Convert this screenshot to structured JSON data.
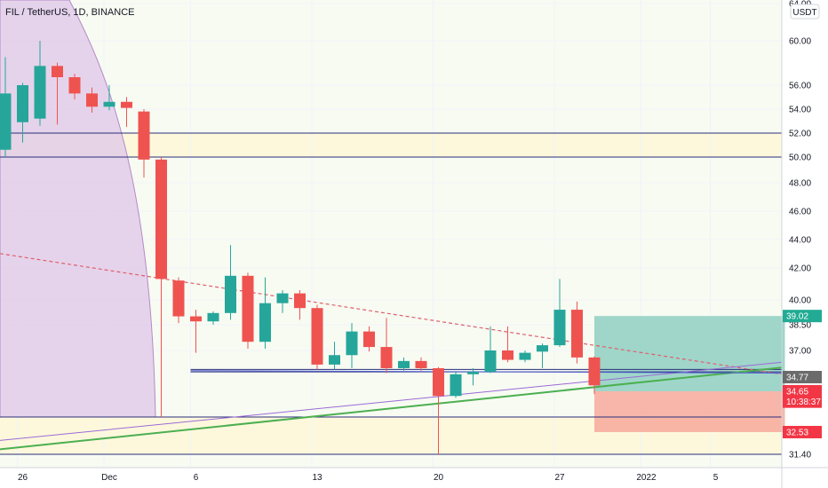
{
  "chart_data": {
    "type": "candlestick",
    "title": "FIL / TetherUS, 1D, BINANCE",
    "currency_button": "USDT",
    "y_scale": "log",
    "ylim": [
      30.6,
      64.5
    ],
    "y_ticks": [
      {
        "label": "64.00",
        "value": 64.0
      },
      {
        "label": "60.00",
        "value": 60.0
      },
      {
        "label": "56.00",
        "value": 56.0
      },
      {
        "label": "54.00",
        "value": 54.0
      },
      {
        "label": "52.00",
        "value": 52.0
      },
      {
        "label": "50.00",
        "value": 50.0
      },
      {
        "label": "48.00",
        "value": 48.0
      },
      {
        "label": "46.00",
        "value": 46.0
      },
      {
        "label": "44.00",
        "value": 44.0
      },
      {
        "label": "42.00",
        "value": 42.0
      },
      {
        "label": "40.00",
        "value": 40.0
      },
      {
        "label": "38.50",
        "value": 38.5
      },
      {
        "label": "37.00",
        "value": 37.0
      },
      {
        "label": "31.40",
        "value": 31.4
      }
    ],
    "x_ticks": [
      {
        "label": "26",
        "date": "2021-11-26"
      },
      {
        "label": "Dec",
        "date": "2021-12-01"
      },
      {
        "label": "6",
        "date": "2021-12-06"
      },
      {
        "label": "13",
        "date": "2021-12-13"
      },
      {
        "label": "20",
        "date": "2021-12-20"
      },
      {
        "label": "27",
        "date": "2021-12-27"
      },
      {
        "label": "2022",
        "date": "2022-01-01"
      },
      {
        "label": "5",
        "date": "2022-01-05"
      }
    ],
    "candles": [
      {
        "date": "2021-11-25",
        "open": 50.6,
        "high": 58.5,
        "low": 50.0,
        "close": 55.3
      },
      {
        "date": "2021-11-26",
        "open": 52.9,
        "high": 56.2,
        "low": 51.2,
        "close": 56.0
      },
      {
        "date": "2021-11-27",
        "open": 53.2,
        "high": 60.0,
        "low": 52.6,
        "close": 57.7
      },
      {
        "date": "2021-11-28",
        "open": 57.7,
        "high": 58.0,
        "low": 52.7,
        "close": 56.7
      },
      {
        "date": "2021-11-29",
        "open": 56.7,
        "high": 57.0,
        "low": 54.8,
        "close": 55.3
      },
      {
        "date": "2021-11-30",
        "open": 55.3,
        "high": 55.8,
        "low": 53.7,
        "close": 54.2
      },
      {
        "date": "2021-12-01",
        "open": 54.2,
        "high": 56.0,
        "low": 53.9,
        "close": 54.6
      },
      {
        "date": "2021-12-02",
        "open": 54.6,
        "high": 55.0,
        "low": 52.5,
        "close": 54.1
      },
      {
        "date": "2021-12-03",
        "open": 53.8,
        "high": 54.0,
        "low": 48.4,
        "close": 49.8
      },
      {
        "date": "2021-12-04",
        "open": 49.8,
        "high": 50.0,
        "low": 33.3,
        "close": 41.3
      },
      {
        "date": "2021-12-05",
        "open": 41.2,
        "high": 41.4,
        "low": 38.6,
        "close": 39.0
      },
      {
        "date": "2021-12-06",
        "open": 39.0,
        "high": 39.4,
        "low": 36.8,
        "close": 38.7
      },
      {
        "date": "2021-12-07",
        "open": 38.7,
        "high": 39.3,
        "low": 38.5,
        "close": 39.2
      },
      {
        "date": "2021-12-08",
        "open": 39.2,
        "high": 43.6,
        "low": 38.8,
        "close": 41.5
      },
      {
        "date": "2021-12-09",
        "open": 41.5,
        "high": 41.7,
        "low": 37.1,
        "close": 37.5
      },
      {
        "date": "2021-12-10",
        "open": 37.5,
        "high": 41.4,
        "low": 37.1,
        "close": 39.8
      },
      {
        "date": "2021-12-11",
        "open": 39.8,
        "high": 40.6,
        "low": 39.2,
        "close": 40.4
      },
      {
        "date": "2021-12-12",
        "open": 40.4,
        "high": 40.6,
        "low": 38.8,
        "close": 39.5
      },
      {
        "date": "2021-12-13",
        "open": 39.5,
        "high": 39.7,
        "low": 35.4,
        "close": 35.8
      },
      {
        "date": "2021-12-14",
        "open": 35.8,
        "high": 37.5,
        "low": 35.4,
        "close": 36.6
      },
      {
        "date": "2021-12-15",
        "open": 36.6,
        "high": 38.6,
        "low": 35.5,
        "close": 38.1
      },
      {
        "date": "2021-12-16",
        "open": 38.1,
        "high": 38.4,
        "low": 36.9,
        "close": 37.2
      },
      {
        "date": "2021-12-17",
        "open": 37.2,
        "high": 38.9,
        "low": 35.1,
        "close": 35.5
      },
      {
        "date": "2021-12-18",
        "open": 35.5,
        "high": 36.4,
        "low": 35.3,
        "close": 36.1
      },
      {
        "date": "2021-12-19",
        "open": 36.1,
        "high": 36.4,
        "low": 35.3,
        "close": 35.5
      },
      {
        "date": "2021-12-20",
        "open": 35.5,
        "high": 35.6,
        "low": 31.3,
        "close": 34.4
      },
      {
        "date": "2021-12-21",
        "open": 34.4,
        "high": 35.2,
        "low": 34.3,
        "close": 35.0
      },
      {
        "date": "2021-12-22",
        "open": 35.0,
        "high": 35.5,
        "low": 34.7,
        "close": 35.2
      },
      {
        "date": "2021-12-23",
        "open": 35.2,
        "high": 38.4,
        "low": 35.1,
        "close": 37.0
      },
      {
        "date": "2021-12-24",
        "open": 37.0,
        "high": 38.4,
        "low": 36.0,
        "close": 36.2
      },
      {
        "date": "2021-12-25",
        "open": 36.2,
        "high": 37.0,
        "low": 36.0,
        "close": 36.8
      },
      {
        "date": "2021-12-26",
        "open": 36.9,
        "high": 37.4,
        "low": 35.5,
        "close": 37.3
      },
      {
        "date": "2021-12-27",
        "open": 37.3,
        "high": 41.3,
        "low": 37.2,
        "close": 39.4
      },
      {
        "date": "2021-12-28",
        "open": 39.4,
        "high": 39.9,
        "low": 35.9,
        "close": 36.4
      },
      {
        "date": "2021-12-29",
        "open": 36.4,
        "high": 36.5,
        "low": 34.5,
        "close": 34.7
      }
    ],
    "horizontal_lines": [
      52.0,
      50.0,
      35.4,
      35.2,
      33.3,
      31.4
    ],
    "yellow_zones": [
      {
        "from": 50.0,
        "to": 52.0
      },
      {
        "from": 31.4,
        "to": 33.3
      }
    ],
    "position_tool": {
      "entry": 34.65,
      "target": 39.02,
      "stop": 32.53,
      "start_date": "2021-12-29",
      "end_date": "2022-01-09"
    },
    "price_tags": [
      {
        "label": "39.02",
        "value": 39.02,
        "color": "#22ab94"
      },
      {
        "label": "34.77",
        "value": 34.77,
        "color": "#6b6b6b"
      },
      {
        "label": "34.65",
        "value": 34.65,
        "color": "#f23645"
      },
      {
        "label": "10:38:37",
        "value": 34.1,
        "color": "#f23645"
      },
      {
        "label": "32.53",
        "value": 32.53,
        "color": "#f23645"
      }
    ],
    "colors": {
      "up": "#26a69a",
      "down": "#ef5350",
      "zone": "#fdf8dc",
      "profit": "#8fcfc2",
      "loss": "#f7a99c",
      "grid": "#f0f3fa",
      "line_navy": "#2a2e7a",
      "line_green": "#4caf50",
      "line_purple": "#9c6ad6",
      "dashed": "#e05e6d",
      "curve_fill": "#e0c9e8"
    }
  }
}
